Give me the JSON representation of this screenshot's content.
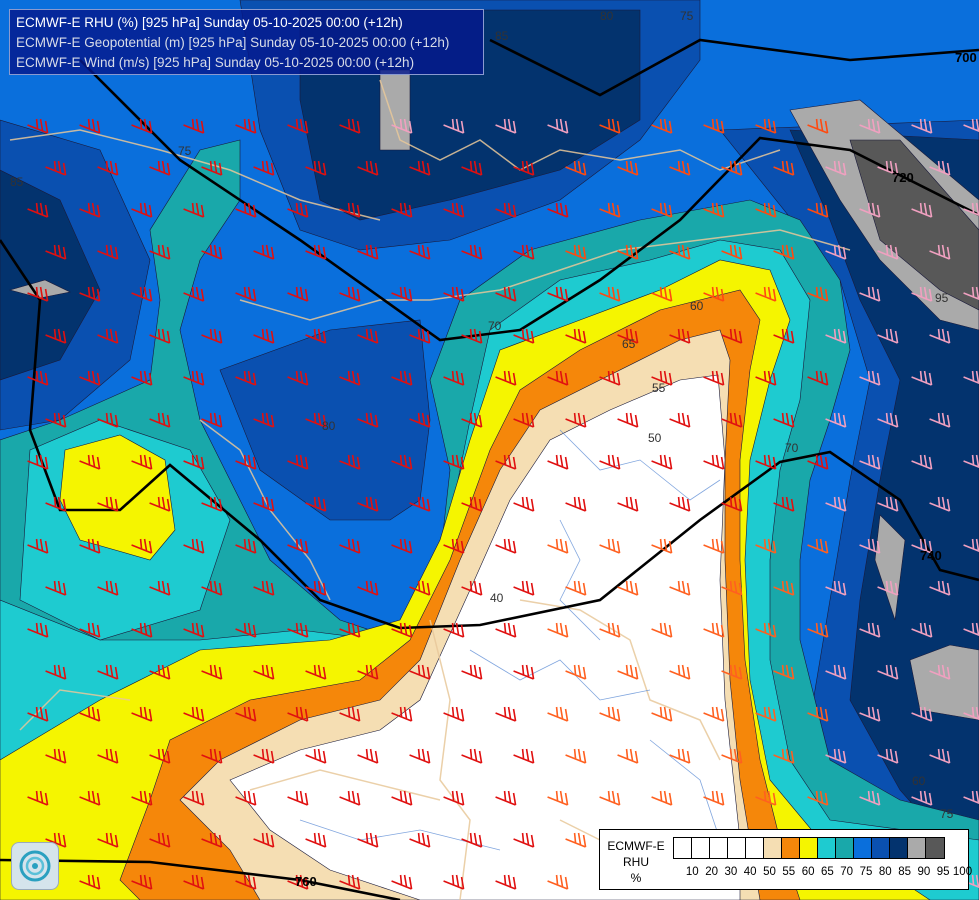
{
  "header": {
    "lines": [
      "ECMWF-E RHU (%) [925 hPa] Sunday 05-10-2025 00:00 (+12h)",
      "ECMWF-E Geopotential (m) [925 hPa] Sunday 05-10-2025 00:00 (+12h)",
      "ECMWF-E Wind (m/s) [925 hPa] Sunday 05-10-2025 00:00 (+12h)"
    ]
  },
  "legend": {
    "title_line1": "ECMWF-E",
    "title_line2": "RHU",
    "unit": "%",
    "ticks": [
      "10",
      "20",
      "30",
      "40",
      "50",
      "55",
      "60",
      "65",
      "70",
      "75",
      "80",
      "85",
      "90",
      "95",
      "100"
    ],
    "colors": [
      "#ffffff",
      "#ffffff",
      "#ffffff",
      "#ffffff",
      "#ffffff",
      "#f5deb3",
      "#f5870a",
      "#f5f500",
      "#1ecbd0",
      "#19a8aa",
      "#0a6fdc",
      "#0a50b0",
      "#03336e",
      "#aaaaaa",
      "#585858"
    ]
  },
  "map": {
    "contour_labels": [
      "85",
      "80",
      "75",
      "85",
      "75",
      "70",
      "65",
      "60",
      "55",
      "50",
      "40",
      "80",
      "70",
      "75",
      "95",
      "60",
      "720",
      "740",
      "760",
      "700"
    ]
  },
  "logo": {
    "name": "ecmwf-logo"
  }
}
